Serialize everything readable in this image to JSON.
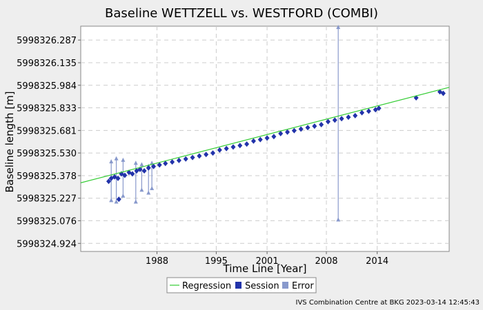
{
  "chart_data": {
    "type": "scatter",
    "title": "Baseline WETTZELL vs. WESTFORD (COMBI)",
    "xlabel": "Time Line [Year]",
    "ylabel": "Baseline length [m]",
    "x_ticks": [
      "1988",
      "1995",
      "2001",
      "2008",
      "2014"
    ],
    "x_tick_values": [
      1988,
      1995,
      2001,
      2008,
      2014
    ],
    "y_ticks": [
      "5998326.287",
      "5998326.135",
      "5998325.984",
      "5998325.833",
      "5998325.681",
      "5998325.530",
      "5998325.378",
      "5998325.227",
      "5998325.076",
      "5998324.924"
    ],
    "y_tick_values": [
      5998326.287,
      5998326.135,
      5998325.984,
      5998325.833,
      5998325.681,
      5998325.53,
      5998325.378,
      5998325.227,
      5998325.076,
      5998324.924
    ],
    "xlim": [
      1979.0,
      2022.5
    ],
    "ylim": [
      5998324.87,
      5998326.38
    ],
    "grid": true,
    "legend_position": "bottom",
    "legend": [
      "Regression",
      "Session",
      "Error"
    ],
    "colors": {
      "regression": "#33cc33",
      "session": "#2233aa",
      "error": "#8899cc",
      "background": "#eeeeee",
      "plot": "#ffffff",
      "grid": "#cccccc"
    },
    "regression": {
      "x": [
        1979.0,
        2022.5
      ],
      "y": [
        5998325.33,
        5998325.97
      ]
    },
    "series": [
      {
        "name": "Session",
        "x": [
          1982.3,
          1982.6,
          1983.0,
          1983.4,
          1983.8,
          1984.2,
          1984.7,
          1985.1,
          1985.6,
          1986.0,
          1986.5,
          1987.0,
          1987.6,
          1988.3,
          1989.0,
          1989.8,
          1990.6,
          1991.4,
          1992.2,
          1993.0,
          1993.8,
          1994.6,
          1995.4,
          1996.2,
          1997.0,
          1997.8,
          1998.6,
          1999.4,
          2000.2,
          2001.0,
          2001.8,
          2002.6,
          2003.4,
          2004.2,
          2005.0,
          2005.8,
          2006.6,
          2007.4,
          2008.2,
          2009.0,
          2009.8,
          2010.6,
          2011.4,
          2012.2,
          2013.0,
          2013.8,
          2014.2,
          2018.6,
          2021.4,
          2021.8,
          1983.5
        ],
        "y": [
          5998325.34,
          5998325.36,
          5998325.37,
          5998325.36,
          5998325.39,
          5998325.38,
          5998325.4,
          5998325.39,
          5998325.41,
          5998325.42,
          5998325.41,
          5998325.43,
          5998325.44,
          5998325.45,
          5998325.46,
          5998325.47,
          5998325.48,
          5998325.49,
          5998325.5,
          5998325.51,
          5998325.52,
          5998325.53,
          5998325.55,
          5998325.56,
          5998325.57,
          5998325.58,
          5998325.59,
          5998325.61,
          5998325.62,
          5998325.63,
          5998325.64,
          5998325.66,
          5998325.67,
          5998325.68,
          5998325.69,
          5998325.7,
          5998325.71,
          5998325.72,
          5998325.74,
          5998325.75,
          5998325.76,
          5998325.77,
          5998325.78,
          5998325.8,
          5998325.81,
          5998325.82,
          5998325.83,
          5998325.9,
          5998325.94,
          5998325.93,
          5998325.22
        ]
      },
      {
        "name": "Error",
        "x": [
          1982.6,
          1983.2,
          1984.0,
          1985.5,
          1986.2,
          1987.0,
          1987.4,
          2009.4
        ],
        "low": [
          5998325.21,
          5998325.2,
          5998325.24,
          5998325.2,
          5998325.28,
          5998325.26,
          5998325.29,
          5998325.08
        ],
        "high": [
          5998325.47,
          5998325.49,
          5998325.48,
          5998325.46,
          5998325.45,
          5998325.44,
          5998325.46,
          5998326.37
        ]
      }
    ]
  },
  "legend_labels": {
    "regression": "Regression",
    "session": "Session",
    "error": "Error"
  },
  "footer": "IVS Combination Centre at BKG 2023-03-14 12:45:43"
}
